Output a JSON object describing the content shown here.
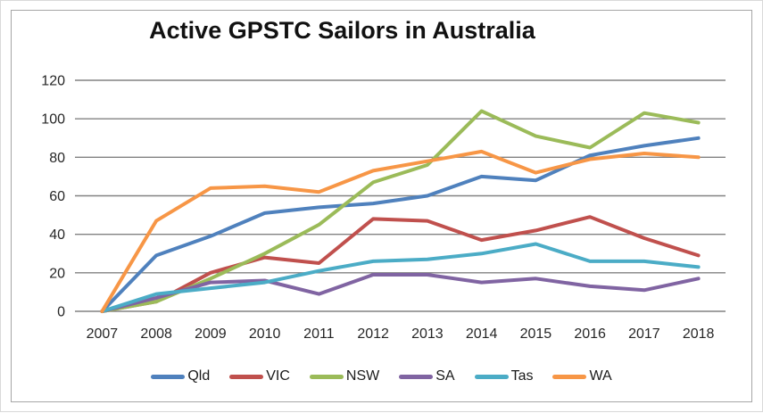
{
  "chart_data": {
    "type": "line",
    "title": "Active GPSTC Sailors in Australia",
    "categories": [
      "2007",
      "2008",
      "2009",
      "2010",
      "2011",
      "2012",
      "2013",
      "2014",
      "2015",
      "2016",
      "2017",
      "2018"
    ],
    "series": [
      {
        "name": "Qld",
        "color": "#4F81BD",
        "values": [
          0,
          29,
          39,
          51,
          54,
          56,
          60,
          70,
          68,
          81,
          86,
          90
        ]
      },
      {
        "name": "VIC",
        "color": "#C0504D",
        "values": [
          0,
          5,
          20,
          28,
          25,
          48,
          47,
          37,
          42,
          49,
          38,
          29
        ]
      },
      {
        "name": "NSW",
        "color": "#9BBB59",
        "values": [
          0,
          5,
          17,
          30,
          45,
          67,
          76,
          104,
          91,
          85,
          103,
          98
        ]
      },
      {
        "name": "SA",
        "color": "#8064A2",
        "values": [
          0,
          7,
          15,
          16,
          9,
          19,
          19,
          15,
          17,
          13,
          11,
          17
        ]
      },
      {
        "name": "Tas",
        "color": "#4BACC6",
        "values": [
          0,
          9,
          12,
          15,
          21,
          26,
          27,
          30,
          35,
          26,
          26,
          23
        ]
      },
      {
        "name": "WA",
        "color": "#F79646",
        "values": [
          0,
          47,
          64,
          65,
          62,
          73,
          78,
          83,
          72,
          79,
          82,
          80
        ]
      }
    ],
    "xlabel": "",
    "ylabel": "",
    "ylim": [
      0,
      120
    ],
    "ytick_step": 20,
    "grid": "horizontal",
    "legend_position": "bottom",
    "gridline_color": "#828282",
    "text_color": "#262626",
    "line_width": 4
  }
}
